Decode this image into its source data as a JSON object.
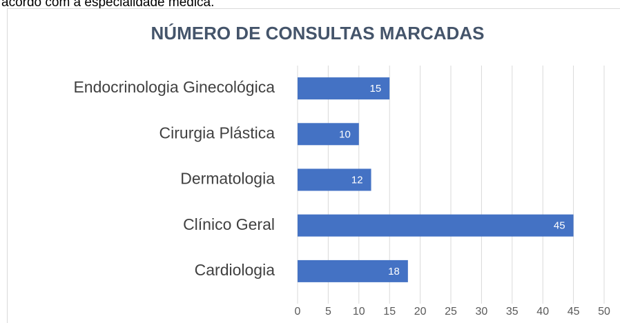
{
  "header_text": "acordo com a especialidade médica.",
  "chart_data": {
    "type": "bar",
    "orientation": "horizontal",
    "title": "NÚMERO DE CONSULTAS MARCADAS",
    "categories": [
      "Endocrinologia Ginecológica",
      "Cirurgia Plástica",
      "Dermatologia",
      "Clínico Geral",
      "Cardiologia"
    ],
    "values": [
      15,
      10,
      12,
      45,
      18
    ],
    "color": "#4472c4",
    "xlim": [
      0,
      50
    ],
    "xticks": [
      0,
      5,
      10,
      15,
      20,
      25,
      30,
      35,
      40,
      45,
      50
    ],
    "grid": true
  }
}
